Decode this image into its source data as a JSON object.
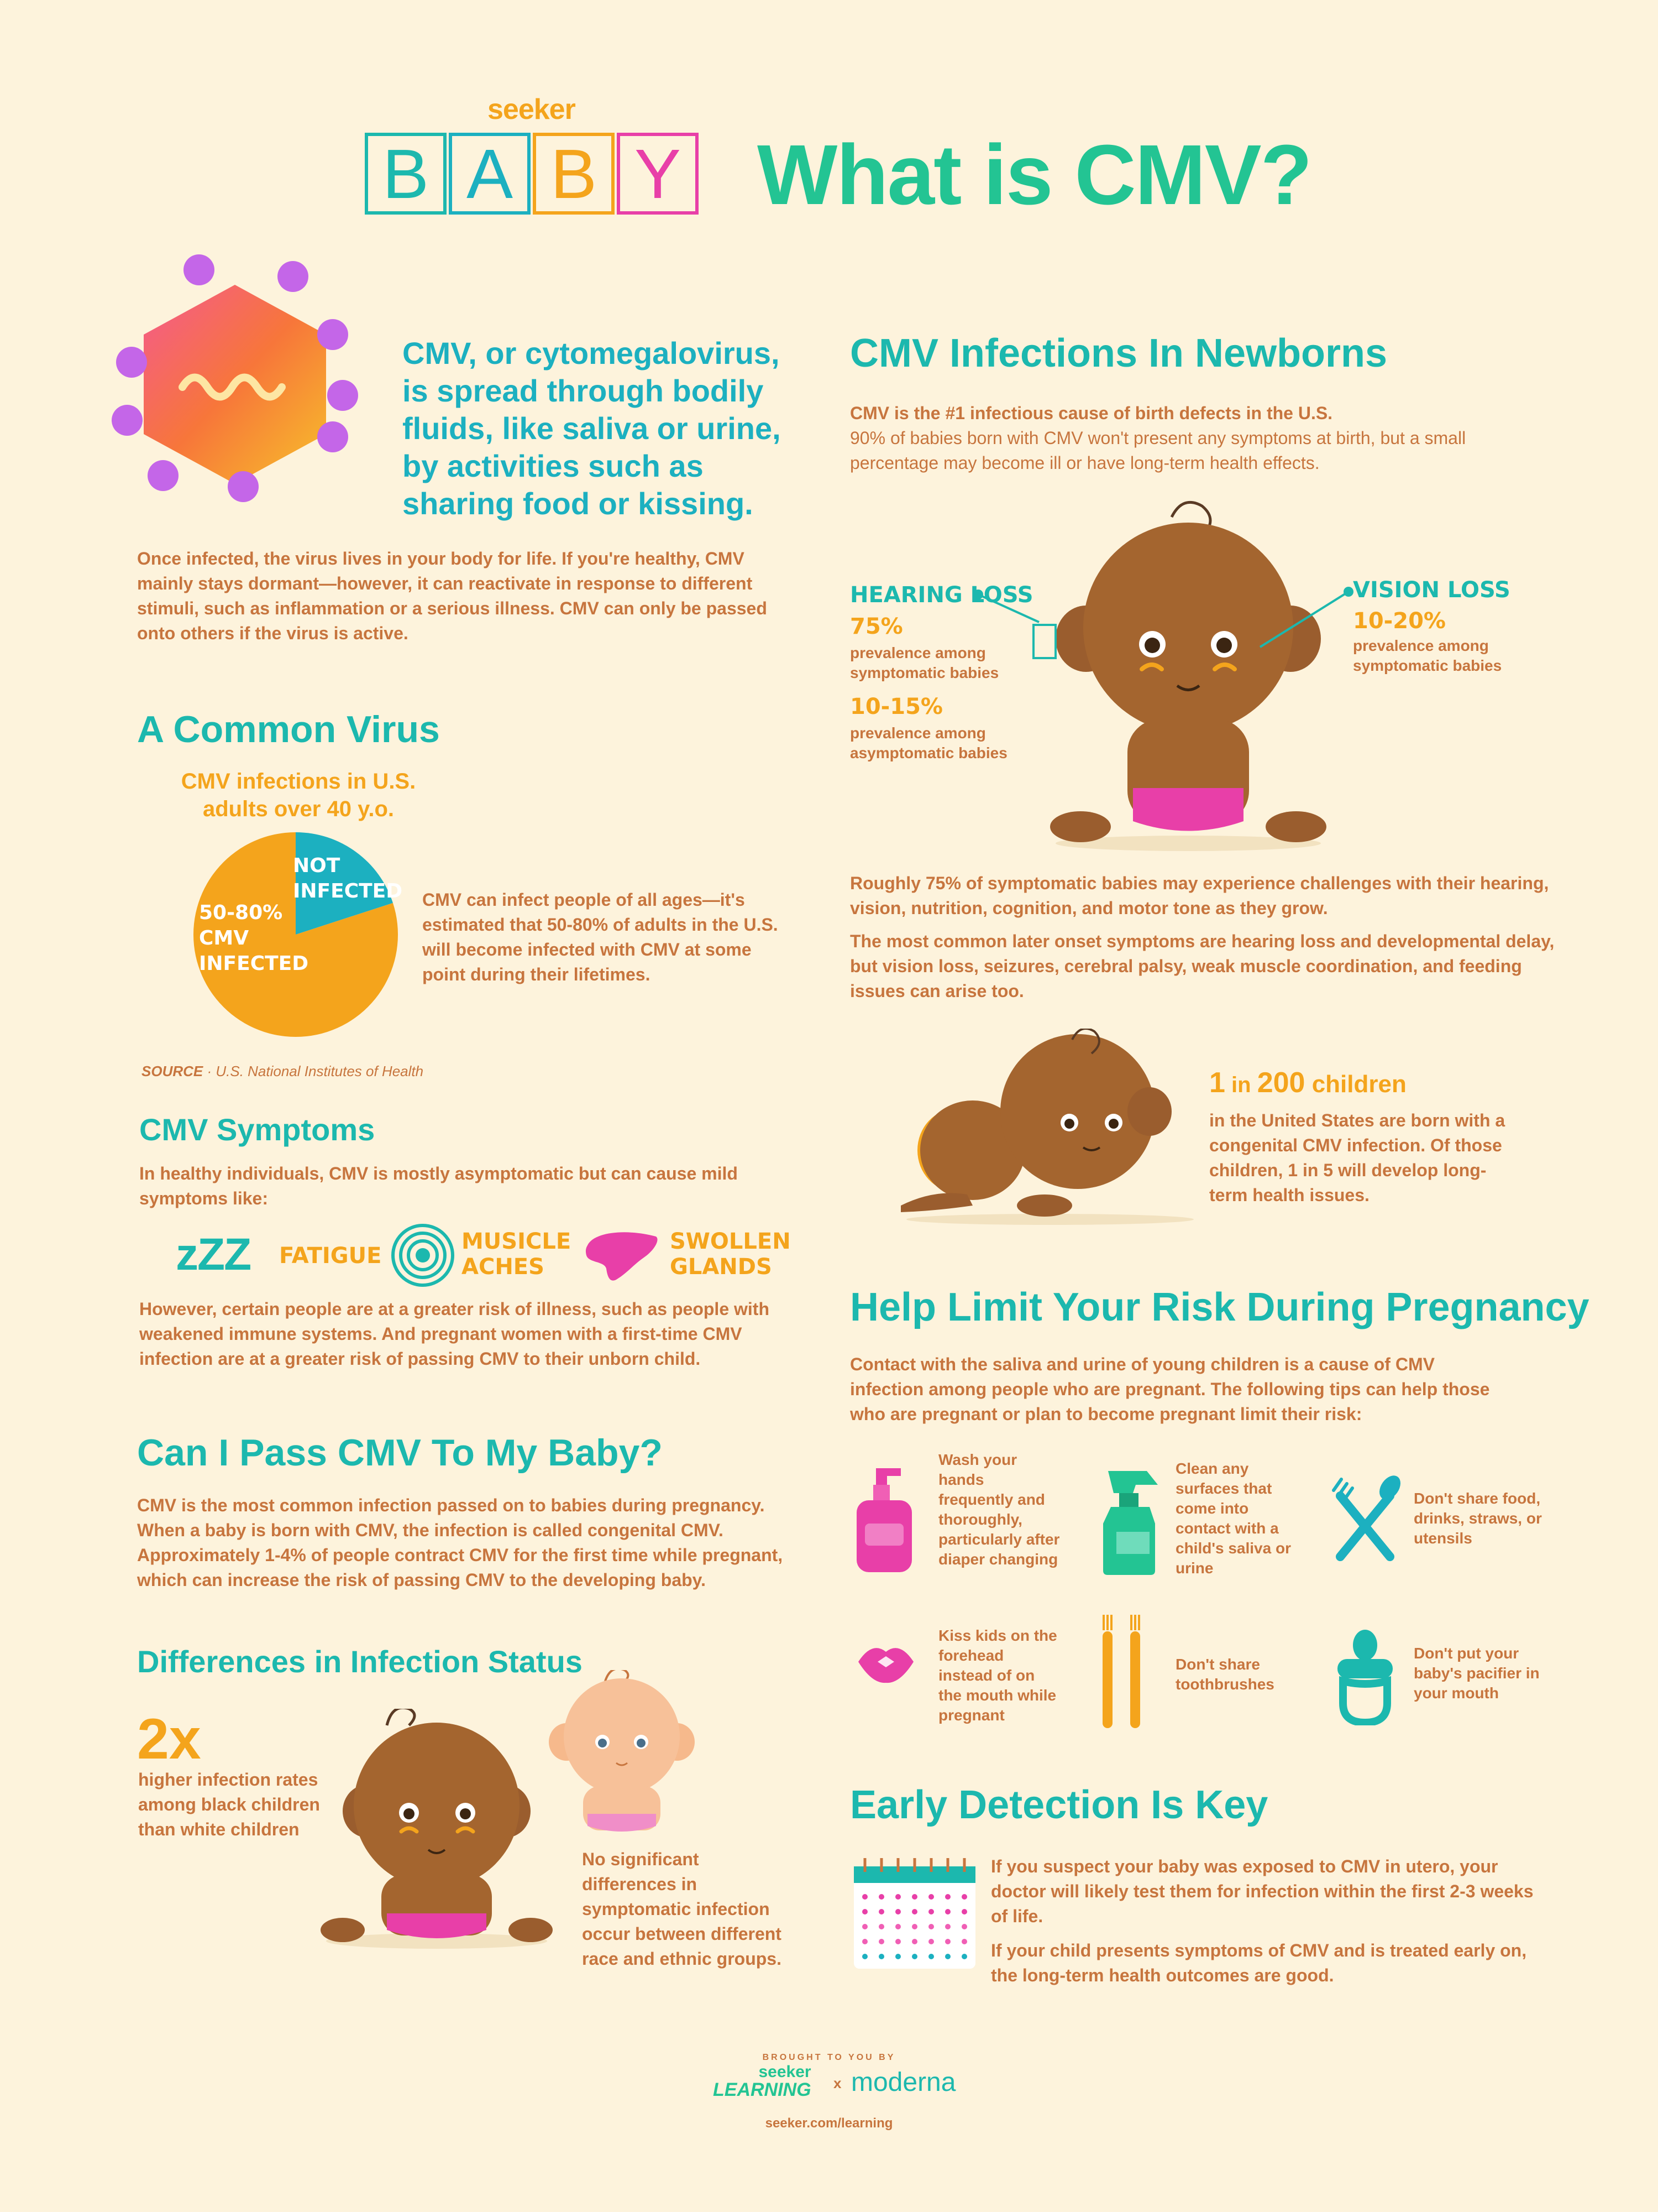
{
  "header": {
    "seeker": "seeker",
    "baby_letters": [
      "B",
      "A",
      "B",
      "Y"
    ],
    "title": "What is CMV?"
  },
  "intro": {
    "headline": "CMV, or cytomegalovirus, is spread through bodily fluids, like saliva or urine, by activities such as sharing food or kissing.",
    "body": "Once infected, the virus lives in your body for life. If you're healthy, CMV mainly stays dormant—however, it can reactivate in response to different stimuli, such as inflammation or a serious illness. CMV can only be passed onto others if the virus is active."
  },
  "common_virus": {
    "heading": "A Common Virus",
    "chart_title": "CMV infections in U.S. adults over 40 y.o.",
    "text": "CMV can infect people of all ages—it's estimated that 50-80% of adults in the U.S. will become infected with CMV at some point during their lifetimes.",
    "source_label": "SOURCE",
    "source_text": " · U.S. National Institutes of Health"
  },
  "chart_data": {
    "type": "pie",
    "title": "CMV infections in U.S. adults over 40 y.o.",
    "slices": [
      {
        "label": "50-80% CMV INFECTED",
        "value": 80,
        "color": "#f4a41c"
      },
      {
        "label": "NOT INFECTED",
        "value": 20,
        "color": "#1cb0c0"
      }
    ]
  },
  "symptoms": {
    "heading": "CMV Symptoms",
    "intro": "In healthy individuals, CMV is mostly asymptomatic but can cause mild symptoms like:",
    "items": [
      {
        "icon": "zzz-icon",
        "glyph": "zZZ",
        "label": "FATIGUE"
      },
      {
        "icon": "muscle-icon",
        "label": "MUSICLE ACHES"
      },
      {
        "icon": "liver-icon",
        "label": "SWOLLEN GLANDS"
      }
    ],
    "outro": "However, certain people are at a greater risk of illness, such as people with weakened immune systems. And pregnant women with a first-time CMV infection are at a greater risk of passing CMV to their unborn child."
  },
  "pass": {
    "heading": "Can I Pass CMV To My Baby?",
    "body": "CMV is the most common infection passed on to babies during pregnancy. When a baby is born with CMV, the infection is called congenital CMV. Approximately 1-4% of people contract CMV for the first time while pregnant, which can increase the risk of passing CMV to the developing baby."
  },
  "differences": {
    "heading": "Differences in Infection Status",
    "stat": "2x",
    "stat_text": "higher infection rates among black children than white children",
    "note": "No significant differences in symptomatic infection occur between different race and ethnic groups."
  },
  "newborns": {
    "heading": "CMV Infections In Newborns",
    "lead": "CMV is the #1 infectious cause of birth defects in the U.S.",
    "body": "90% of babies born with CMV won't present any symptoms at birth, but a small percentage may become ill or have long-term health effects.",
    "hearing_title": "HEARING LOSS",
    "hearing_sym_pct": "75%",
    "hearing_sym_text": "prevalence among symptomatic babies",
    "hearing_asym_pct": "10-15%",
    "hearing_asym_text": "prevalence among asymptomatic babies",
    "vision_title": "VISION LOSS",
    "vision_pct": "10-20%",
    "vision_text": "prevalence among symptomatic babies",
    "para1": "Roughly 75% of symptomatic babies may experience challenges with their hearing, vision, nutrition, cognition, and motor tone as they grow.",
    "para2": "The most common later onset symptoms are hearing loss and developmental delay, but vision loss, seizures, cerebral palsy, weak muscle coordination, and feeding issues can arise too.",
    "ratio_num1": "1",
    "ratio_in": " in ",
    "ratio_num2": "200",
    "ratio_word": " children",
    "ratio_text": "in the United States are born with a congenital CMV infection. Of those children, 1 in 5 will develop long-term health issues."
  },
  "risk": {
    "heading": "Help Limit Your Risk During Pregnancy",
    "intro": "Contact with the saliva and urine of young children is a cause of CMV infection among people who are pregnant. The following tips can help those who are pregnant or plan to become pregnant limit their risk:",
    "tips": [
      {
        "icon": "soap-icon",
        "text": "Wash your hands frequently and thoroughly, particularly after diaper changing"
      },
      {
        "icon": "spray-icon",
        "text": "Clean any surfaces that come into contact with a child's saliva or urine"
      },
      {
        "icon": "utensils-icon",
        "text": "Don't share food, drinks, straws, or utensils"
      },
      {
        "icon": "lips-icon",
        "text": "Kiss kids on the forehead instead of on the mouth while pregnant"
      },
      {
        "icon": "toothbrush-icon",
        "text": "Don't share toothbrushes"
      },
      {
        "icon": "pacifier-icon",
        "text": "Don't put your baby's pacifier in your mouth"
      }
    ]
  },
  "detection": {
    "heading": "Early Detection Is Key",
    "para1": "If you suspect your baby was exposed to CMV in utero, your doctor will likely test them for infection within the first 2-3 weeks of life.",
    "para2": "If your child presents symptoms of CMV and is treated early on, the long-term health outcomes are good."
  },
  "footer": {
    "brought": "BROUGHT TO YOU BY",
    "seeker": "seeker",
    "learning": "LEARNING",
    "x": "x",
    "moderna": "moderna",
    "url": "seeker.com/learning"
  },
  "colors": {
    "teal": "#1cb8ae",
    "green": "#23c493",
    "orange": "#f4a41c",
    "brown": "#c7753e",
    "pink": "#e83fa8",
    "background": "#fdf3dc"
  }
}
